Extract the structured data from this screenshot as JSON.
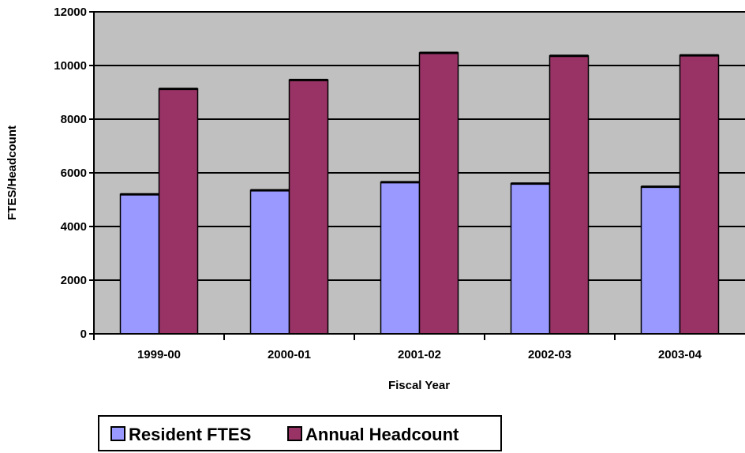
{
  "chart_data": {
    "type": "bar",
    "categories": [
      "1999-00",
      "2000-01",
      "2001-02",
      "2002-03",
      "2003-04"
    ],
    "series": [
      {
        "name": "Resident FTES",
        "values": [
          5200,
          5350,
          5650,
          5600,
          5480
        ],
        "color": "#9999ff"
      },
      {
        "name": "Annual Headcount",
        "values": [
          9130,
          9460,
          10470,
          10360,
          10380
        ],
        "color": "#993366"
      }
    ],
    "xlabel": "Fiscal Year",
    "ylabel": "FTES/Headcount",
    "ylim": [
      0,
      12000
    ],
    "yticks": [
      0,
      2000,
      4000,
      6000,
      8000,
      10000,
      12000
    ],
    "grid": true,
    "plot_background": "#c0c0c0",
    "legend_position": "bottom-left"
  }
}
